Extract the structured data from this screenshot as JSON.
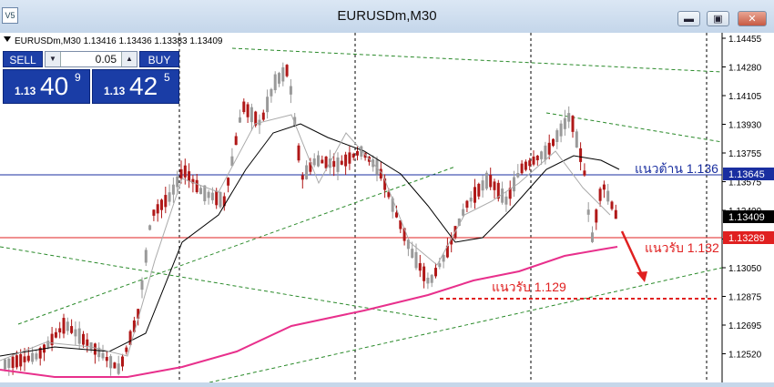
{
  "window": {
    "title": "EURUSDm,M30",
    "icon_label": "V5",
    "min_label": "▬",
    "max_label": "▣",
    "close_label": "✕"
  },
  "chart_header": "EURUSDm,M30  1.13416  1.13436  1.13383  1.13409",
  "trade_panel": {
    "sell_label": "SELL",
    "buy_label": "BUY",
    "lot": "0.05",
    "down_icon": "down-arrow-icon",
    "up_icon": "up-arrow-icon",
    "sell_quote": {
      "prefix": "1.13",
      "big": "40",
      "sup": "9"
    },
    "buy_quote": {
      "prefix": "1.13",
      "big": "42",
      "sup": "5"
    }
  },
  "price_axis": {
    "labels": [
      "1.14455",
      "1.14280",
      "1.14105",
      "1.13930",
      "1.13755",
      "1.13575",
      "1.13400",
      "1.13222",
      "1.13050",
      "1.12875",
      "1.12695",
      "1.12520"
    ],
    "tags": [
      {
        "text": "1.13645",
        "color": "#1a2fa0"
      },
      {
        "text": "1.13409",
        "color": "#000000"
      },
      {
        "text": "1.13289",
        "color": "#e02020"
      }
    ]
  },
  "annotations": {
    "resistance": "แนวต้าน 1.136",
    "support1": "แนวรับ 1.132",
    "support2": "แนวรับ 1.129"
  },
  "colors": {
    "accent": "#1a3da6",
    "resistance": "#1a2fa0",
    "support": "#e02020",
    "ma_pink": "#e8308c"
  }
}
